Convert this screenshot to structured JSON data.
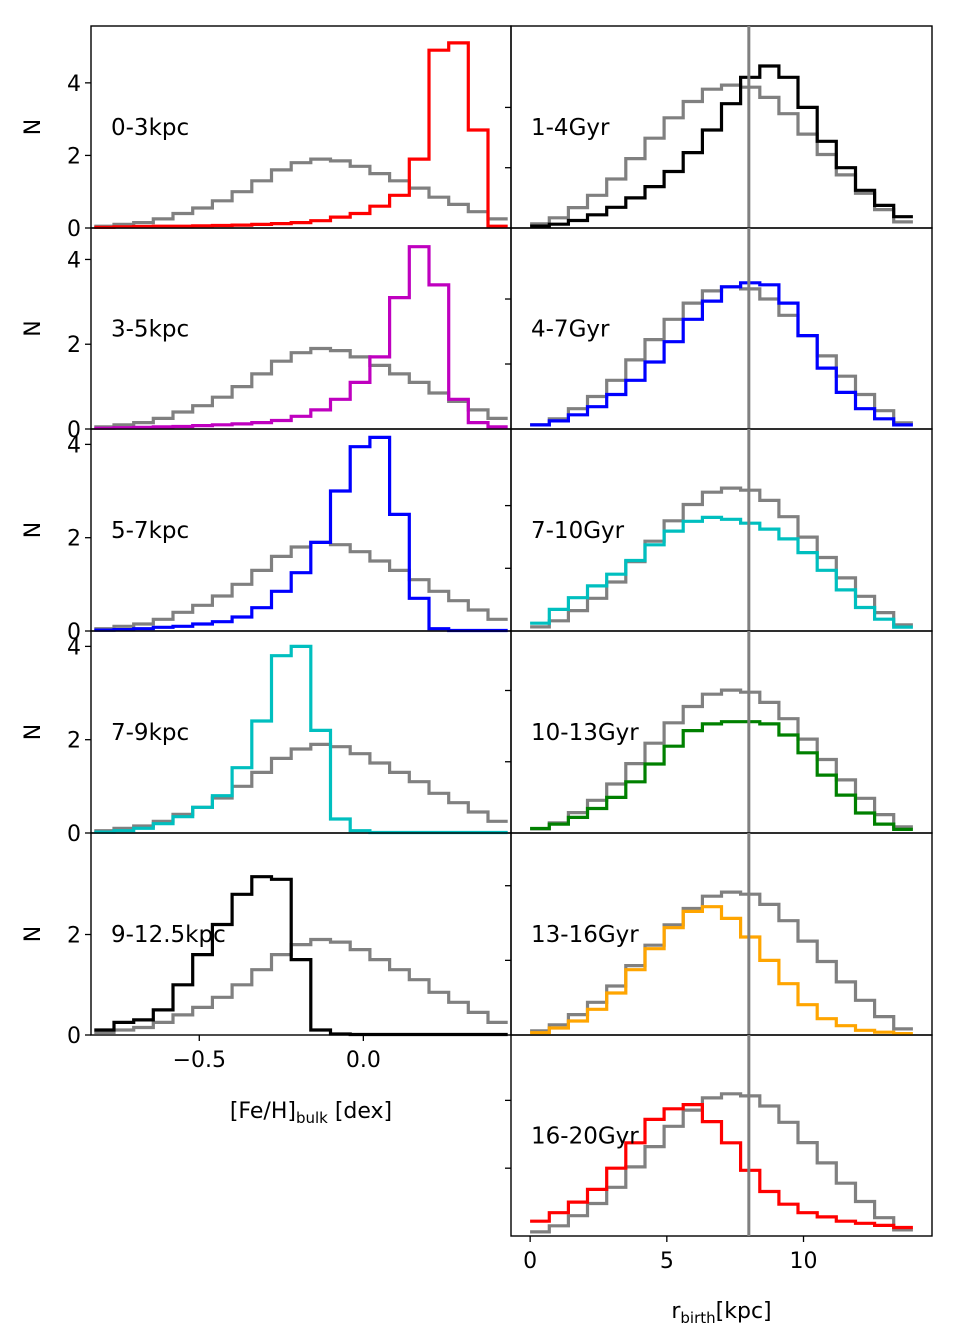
{
  "chart_data": {
    "type": "histogram-grid",
    "reference_color": "#808080",
    "left_column": {
      "xlabel": "[Fe/H]",
      "xlabel_sub": "bulk",
      "xlabel_suffix": " [dex]",
      "ylabel": "N",
      "xlim": [
        -0.83,
        0.45
      ],
      "xticks": [
        -0.5,
        0.0
      ],
      "xtick_labels": [
        "−0.5",
        "0.0"
      ],
      "bin_edges": [
        -0.82,
        -0.76,
        -0.7,
        -0.64,
        -0.58,
        -0.52,
        -0.46,
        -0.4,
        -0.34,
        -0.28,
        -0.22,
        -0.16,
        -0.1,
        -0.04,
        0.02,
        0.08,
        0.14,
        0.2,
        0.26,
        0.32,
        0.38,
        0.44
      ],
      "reference": [
        0.05,
        0.1,
        0.15,
        0.25,
        0.4,
        0.55,
        0.75,
        1.0,
        1.3,
        1.6,
        1.8,
        1.9,
        1.85,
        1.7,
        1.5,
        1.3,
        1.1,
        0.85,
        0.65,
        0.45,
        0.25
      ],
      "panels": [
        {
          "label": "0-3kpc",
          "color": "#ff0000",
          "ylim": [
            0,
            5.4
          ],
          "yticks": [
            0,
            2,
            4
          ],
          "ytick_labels": [
            "0",
            "2",
            "4"
          ],
          "values": [
            0.02,
            0.03,
            0.04,
            0.05,
            0.05,
            0.06,
            0.07,
            0.08,
            0.1,
            0.12,
            0.15,
            0.2,
            0.3,
            0.4,
            0.6,
            0.9,
            1.9,
            4.9,
            5.1,
            2.7,
            0.05
          ]
        },
        {
          "label": "3-5kpc",
          "color": "#bf00bf",
          "ylim": [
            0,
            4.6
          ],
          "yticks": [
            0,
            2,
            4
          ],
          "ytick_labels": [
            "0",
            "2",
            "4"
          ],
          "values": [
            0.02,
            0.03,
            0.04,
            0.05,
            0.06,
            0.08,
            0.1,
            0.12,
            0.15,
            0.2,
            0.3,
            0.45,
            0.7,
            1.1,
            1.7,
            3.1,
            4.3,
            3.4,
            0.7,
            0.15,
            0.05
          ]
        },
        {
          "label": "5-7kpc",
          "color": "#0000ff",
          "ylim": [
            0,
            4.2
          ],
          "yticks": [
            0,
            2,
            4
          ],
          "ytick_labels": [
            "0",
            "2",
            "4"
          ],
          "values": [
            0.02,
            0.03,
            0.05,
            0.08,
            0.1,
            0.15,
            0.2,
            0.3,
            0.5,
            0.85,
            1.25,
            1.9,
            3.0,
            3.95,
            4.15,
            2.5,
            0.7,
            0.05,
            0.01,
            0.01,
            0.01
          ]
        },
        {
          "label": "7-9kpc",
          "color": "#00bfbf",
          "ylim": [
            0,
            4.2
          ],
          "yticks": [
            0,
            2,
            4
          ],
          "ytick_labels": [
            "0",
            "2",
            "4"
          ],
          "values": [
            0.02,
            0.05,
            0.1,
            0.2,
            0.35,
            0.55,
            0.8,
            1.4,
            2.4,
            3.8,
            4.0,
            2.2,
            0.3,
            0.05,
            0.01,
            0.01,
            0.01,
            0.01,
            0.01,
            0.01,
            0.01
          ]
        },
        {
          "label": "9-12.5kpc",
          "color": "#000000",
          "ylim": [
            0,
            3.9
          ],
          "yticks": [
            0,
            2
          ],
          "ytick_labels": [
            "0",
            "2"
          ],
          "values": [
            0.1,
            0.25,
            0.3,
            0.5,
            1.0,
            1.6,
            2.2,
            2.8,
            3.15,
            3.1,
            1.5,
            0.1,
            0.02,
            0.01,
            0.01,
            0.01,
            0.01,
            0.01,
            0.01,
            0.01,
            0.01
          ]
        }
      ]
    },
    "right_column": {
      "xlabel": "r",
      "xlabel_sub": "birth",
      "xlabel_suffix": "[kpc]",
      "xlim": [
        -0.7,
        14.7
      ],
      "xticks": [
        0,
        5,
        10
      ],
      "xtick_labels": [
        "0",
        "5",
        "10"
      ],
      "vline_x": 8.0,
      "vline_color": "#808080",
      "bin_edges": [
        0.0,
        0.7,
        1.4,
        2.1,
        2.8,
        3.5,
        4.2,
        4.9,
        5.6,
        6.3,
        7.0,
        7.7,
        8.4,
        9.1,
        9.8,
        10.5,
        11.2,
        11.9,
        12.6,
        13.3,
        14.0
      ],
      "reference_ylim": [
        0,
        4.8
      ],
      "reference": [
        0.1,
        0.25,
        0.5,
        0.8,
        1.2,
        1.7,
        2.2,
        2.7,
        3.1,
        3.4,
        3.5,
        3.45,
        3.2,
        2.8,
        2.3,
        1.8,
        1.3,
        0.85,
        0.45,
        0.15
      ],
      "panels": [
        {
          "label": "1-4Gyr",
          "color": "#000000",
          "ylim": [
            0,
            5.2
          ],
          "values": [
            0.05,
            0.1,
            0.2,
            0.35,
            0.55,
            0.8,
            1.1,
            1.5,
            2.0,
            2.6,
            3.3,
            4.0,
            4.3,
            4.0,
            3.2,
            2.3,
            1.6,
            1.0,
            0.6,
            0.3
          ]
        },
        {
          "label": "4-7Gyr",
          "color": "#0000ff",
          "ylim": [
            0,
            4.8
          ],
          "values": [
            0.1,
            0.2,
            0.35,
            0.55,
            0.85,
            1.2,
            1.65,
            2.15,
            2.7,
            3.15,
            3.5,
            3.6,
            3.55,
            3.1,
            2.3,
            1.5,
            0.9,
            0.5,
            0.25,
            0.1
          ]
        },
        {
          "label": "7-10Gyr",
          "color": "#00bfbf",
          "ylim": [
            0,
            5.0
          ],
          "values": [
            0.2,
            0.55,
            0.85,
            1.15,
            1.45,
            1.8,
            2.2,
            2.55,
            2.8,
            2.9,
            2.85,
            2.75,
            2.6,
            2.35,
            2.0,
            1.55,
            1.05,
            0.6,
            0.3,
            0.1
          ]
        },
        {
          "label": "10-13Gyr",
          "color": "#008000",
          "ylim": [
            0,
            4.4
          ],
          "values": [
            0.1,
            0.2,
            0.35,
            0.55,
            0.8,
            1.15,
            1.55,
            1.95,
            2.3,
            2.45,
            2.5,
            2.5,
            2.45,
            2.2,
            1.8,
            1.3,
            0.85,
            0.45,
            0.2,
            0.08
          ]
        },
        {
          "label": "13-16Gyr",
          "color": "#ffa500",
          "ylim": [
            0,
            4.2
          ],
          "values": [
            0.05,
            0.15,
            0.3,
            0.55,
            0.9,
            1.4,
            1.85,
            2.3,
            2.65,
            2.75,
            2.5,
            2.1,
            1.6,
            1.1,
            0.65,
            0.35,
            0.2,
            0.1,
            0.06,
            0.03
          ]
        },
        {
          "label": "16-20Gyr",
          "color": "#ff0000",
          "ylim": [
            0,
            4.6
          ],
          "values": [
            0.35,
            0.55,
            0.8,
            1.1,
            1.6,
            2.2,
            2.75,
            3.0,
            3.1,
            2.7,
            2.2,
            1.55,
            1.05,
            0.75,
            0.55,
            0.45,
            0.35,
            0.3,
            0.25,
            0.2
          ]
        }
      ]
    }
  }
}
